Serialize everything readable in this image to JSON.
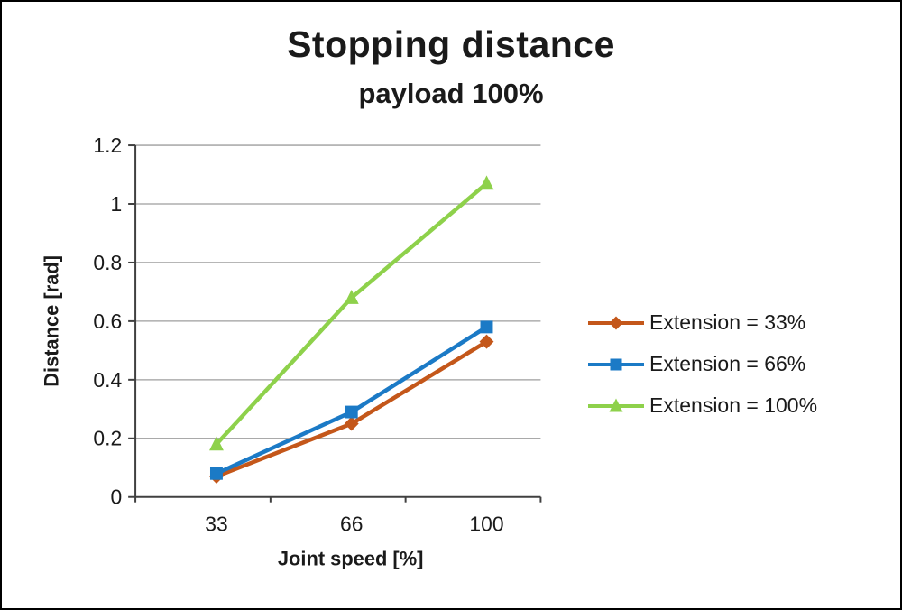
{
  "chart_data": {
    "type": "line",
    "title": "Stopping distance",
    "subtitle": "payload 100%",
    "xlabel": "Joint speed [%]",
    "ylabel": "Distance [rad]",
    "categories": [
      "33",
      "66",
      "100"
    ],
    "series": [
      {
        "name": "Extension = 33%",
        "color": "#c4571a",
        "marker": "diamond",
        "values": [
          0.07,
          0.25,
          0.53
        ]
      },
      {
        "name": "Extension = 66%",
        "color": "#1b7ac6",
        "marker": "square",
        "values": [
          0.08,
          0.29,
          0.58
        ]
      },
      {
        "name": "Extension = 100%",
        "color": "#8ed14b",
        "marker": "triangle",
        "values": [
          0.18,
          0.68,
          1.07
        ]
      }
    ],
    "ylim": [
      0,
      1.2
    ],
    "yticks": [
      0,
      0.2,
      0.4,
      0.6,
      0.8,
      1,
      1.2
    ],
    "grid": "horizontal",
    "legend_position": "right"
  },
  "colors": {
    "grid": "#9d9d9d",
    "axis": "#404040",
    "text": "#1a1a1a",
    "background": "#ffffff",
    "border": "#000000"
  }
}
